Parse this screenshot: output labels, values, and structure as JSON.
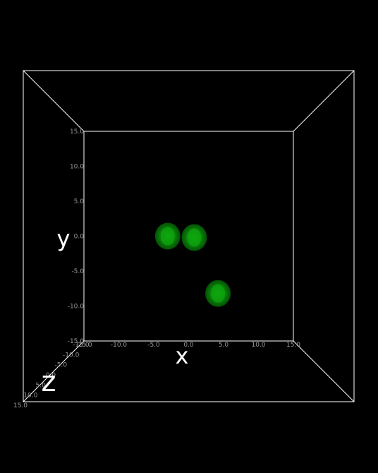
{
  "colors": {
    "background": "#000000",
    "box": "#ffffff",
    "tick": "#9a9a9a",
    "sphere": "#0a8a0a",
    "sphere_core": "#0fae0f"
  },
  "chart_data": {
    "type": "scatter",
    "projection": "3d-box",
    "title": "",
    "xlabel": "x",
    "ylabel": "y",
    "zlabel": "z",
    "xlim": [
      -15,
      15
    ],
    "ylim": [
      -15,
      15
    ],
    "zlim": [
      -15,
      15
    ],
    "x_ticks": [
      "-15.0",
      "-10.0",
      "-5.0",
      "0.0",
      "5.0",
      "10.0",
      "15.0"
    ],
    "y_ticks": [
      "-15.0",
      "-10.0",
      "-5.0",
      "0.0",
      "5.0",
      "10.0",
      "15.0"
    ],
    "z_ticks": [
      "-15.0",
      "-10.0",
      "-5.0",
      "0.0",
      "5.0",
      "10.0",
      "15.0"
    ],
    "grid": false,
    "legend": "none",
    "points": [
      {
        "x": -3.0,
        "y": 0.0,
        "z": 0.0
      },
      {
        "x": 0.8,
        "y": -0.2,
        "z": 0.0
      },
      {
        "x": 4.2,
        "y": -8.2,
        "z": 0.0
      }
    ]
  }
}
